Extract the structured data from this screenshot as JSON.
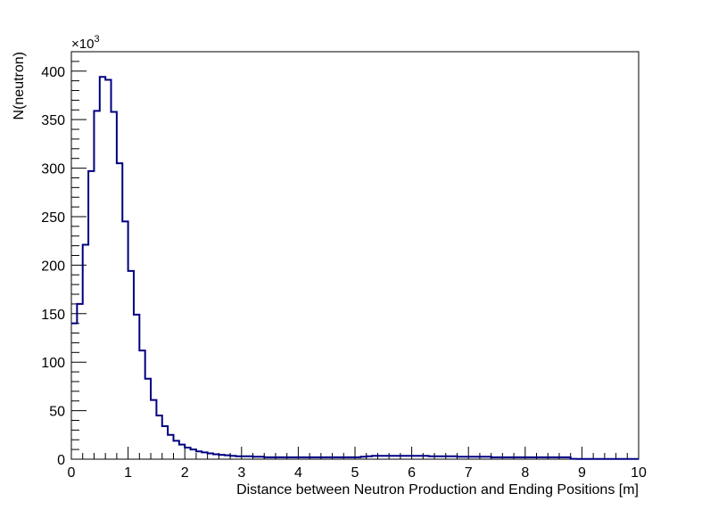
{
  "chart_data": {
    "type": "histogram",
    "title": "",
    "xlabel": "Distance between Neutron Production and Ending Positions [m]",
    "ylabel": "N(neutron)",
    "y_multiplier_base": "×10",
    "y_multiplier_exp": "3",
    "xlim": [
      0,
      10
    ],
    "ylim": [
      0,
      420
    ],
    "x_ticks": [
      "0",
      "1",
      "2",
      "3",
      "4",
      "5",
      "6",
      "7",
      "8",
      "9",
      "10"
    ],
    "y_ticks": [
      "0",
      "50",
      "100",
      "150",
      "200",
      "250",
      "300",
      "350",
      "400"
    ],
    "line_color": "#000080",
    "bin_width": 0.1,
    "bin_start": 0,
    "values": [
      140,
      160,
      221,
      297,
      359,
      394,
      391,
      358,
      305,
      245,
      194,
      149,
      112,
      83,
      61,
      45,
      34,
      25,
      19,
      15,
      12,
      10,
      8,
      7,
      6,
      5,
      4.5,
      4,
      3.5,
      3,
      3,
      3,
      2.5,
      2.5,
      2,
      2,
      2,
      2,
      2,
      2,
      2,
      2,
      2,
      2,
      2,
      2,
      2,
      2,
      2,
      2,
      2,
      2.5,
      3,
      3.5,
      3.5,
      3.5,
      3.5,
      3.5,
      3.5,
      3.5,
      3.5,
      3.5,
      3.5,
      3,
      3,
      3,
      3,
      3,
      2.5,
      2.5,
      2.5,
      2.5,
      2.5,
      2.5,
      2,
      2,
      2,
      2,
      2,
      2,
      2,
      2,
      2,
      2,
      2,
      2,
      2,
      2,
      0.3,
      0.2,
      0.2,
      0.2,
      0.2,
      0.2,
      0.2,
      0.2,
      0.2,
      0.2,
      0.2,
      0.2
    ]
  }
}
